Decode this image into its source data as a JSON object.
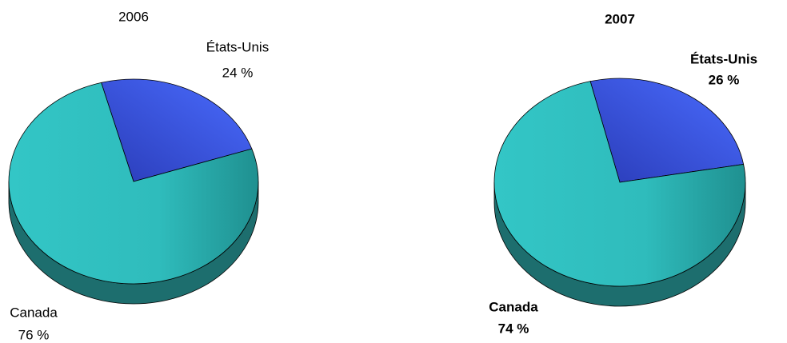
{
  "chart_data": [
    {
      "type": "pie",
      "title": "2006",
      "categories": [
        "États-Unis",
        "Canada"
      ],
      "values": [
        24,
        76
      ],
      "value_labels": [
        "24 %",
        "76 %"
      ],
      "colors": [
        "#3a5cf0",
        "#33c6c6"
      ]
    },
    {
      "type": "pie",
      "title": "2007",
      "categories": [
        "États-Unis",
        "Canada"
      ],
      "values": [
        26,
        74
      ],
      "value_labels": [
        "26 %",
        "74 %"
      ],
      "colors": [
        "#3a5cf0",
        "#33c6c6"
      ]
    }
  ]
}
